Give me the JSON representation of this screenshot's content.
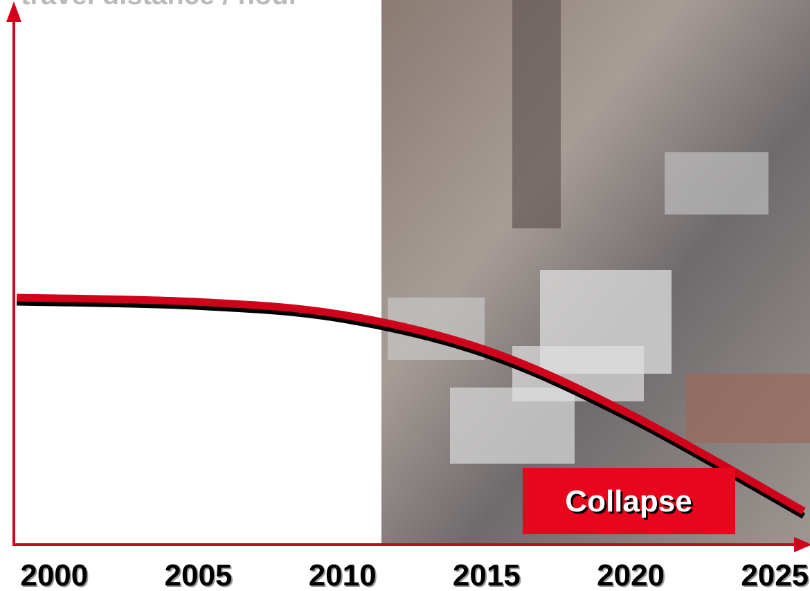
{
  "chart_data": {
    "type": "line",
    "title": "travel distance / hour",
    "x": [
      1998.7,
      2005,
      2010,
      2015,
      2020,
      2026
    ],
    "series": [
      {
        "color": "#d0021b",
        "values": [
          45.8,
          45,
          42.6,
          36,
          24,
          6
        ]
      }
    ],
    "xlim": [
      1998.6,
      2026.1
    ],
    "xticks": [
      2000,
      2005,
      2010,
      2015,
      2020,
      2025
    ],
    "ylim": [
      0,
      100
    ],
    "axis_color": "#d0021b",
    "annotation": "Collapse"
  }
}
